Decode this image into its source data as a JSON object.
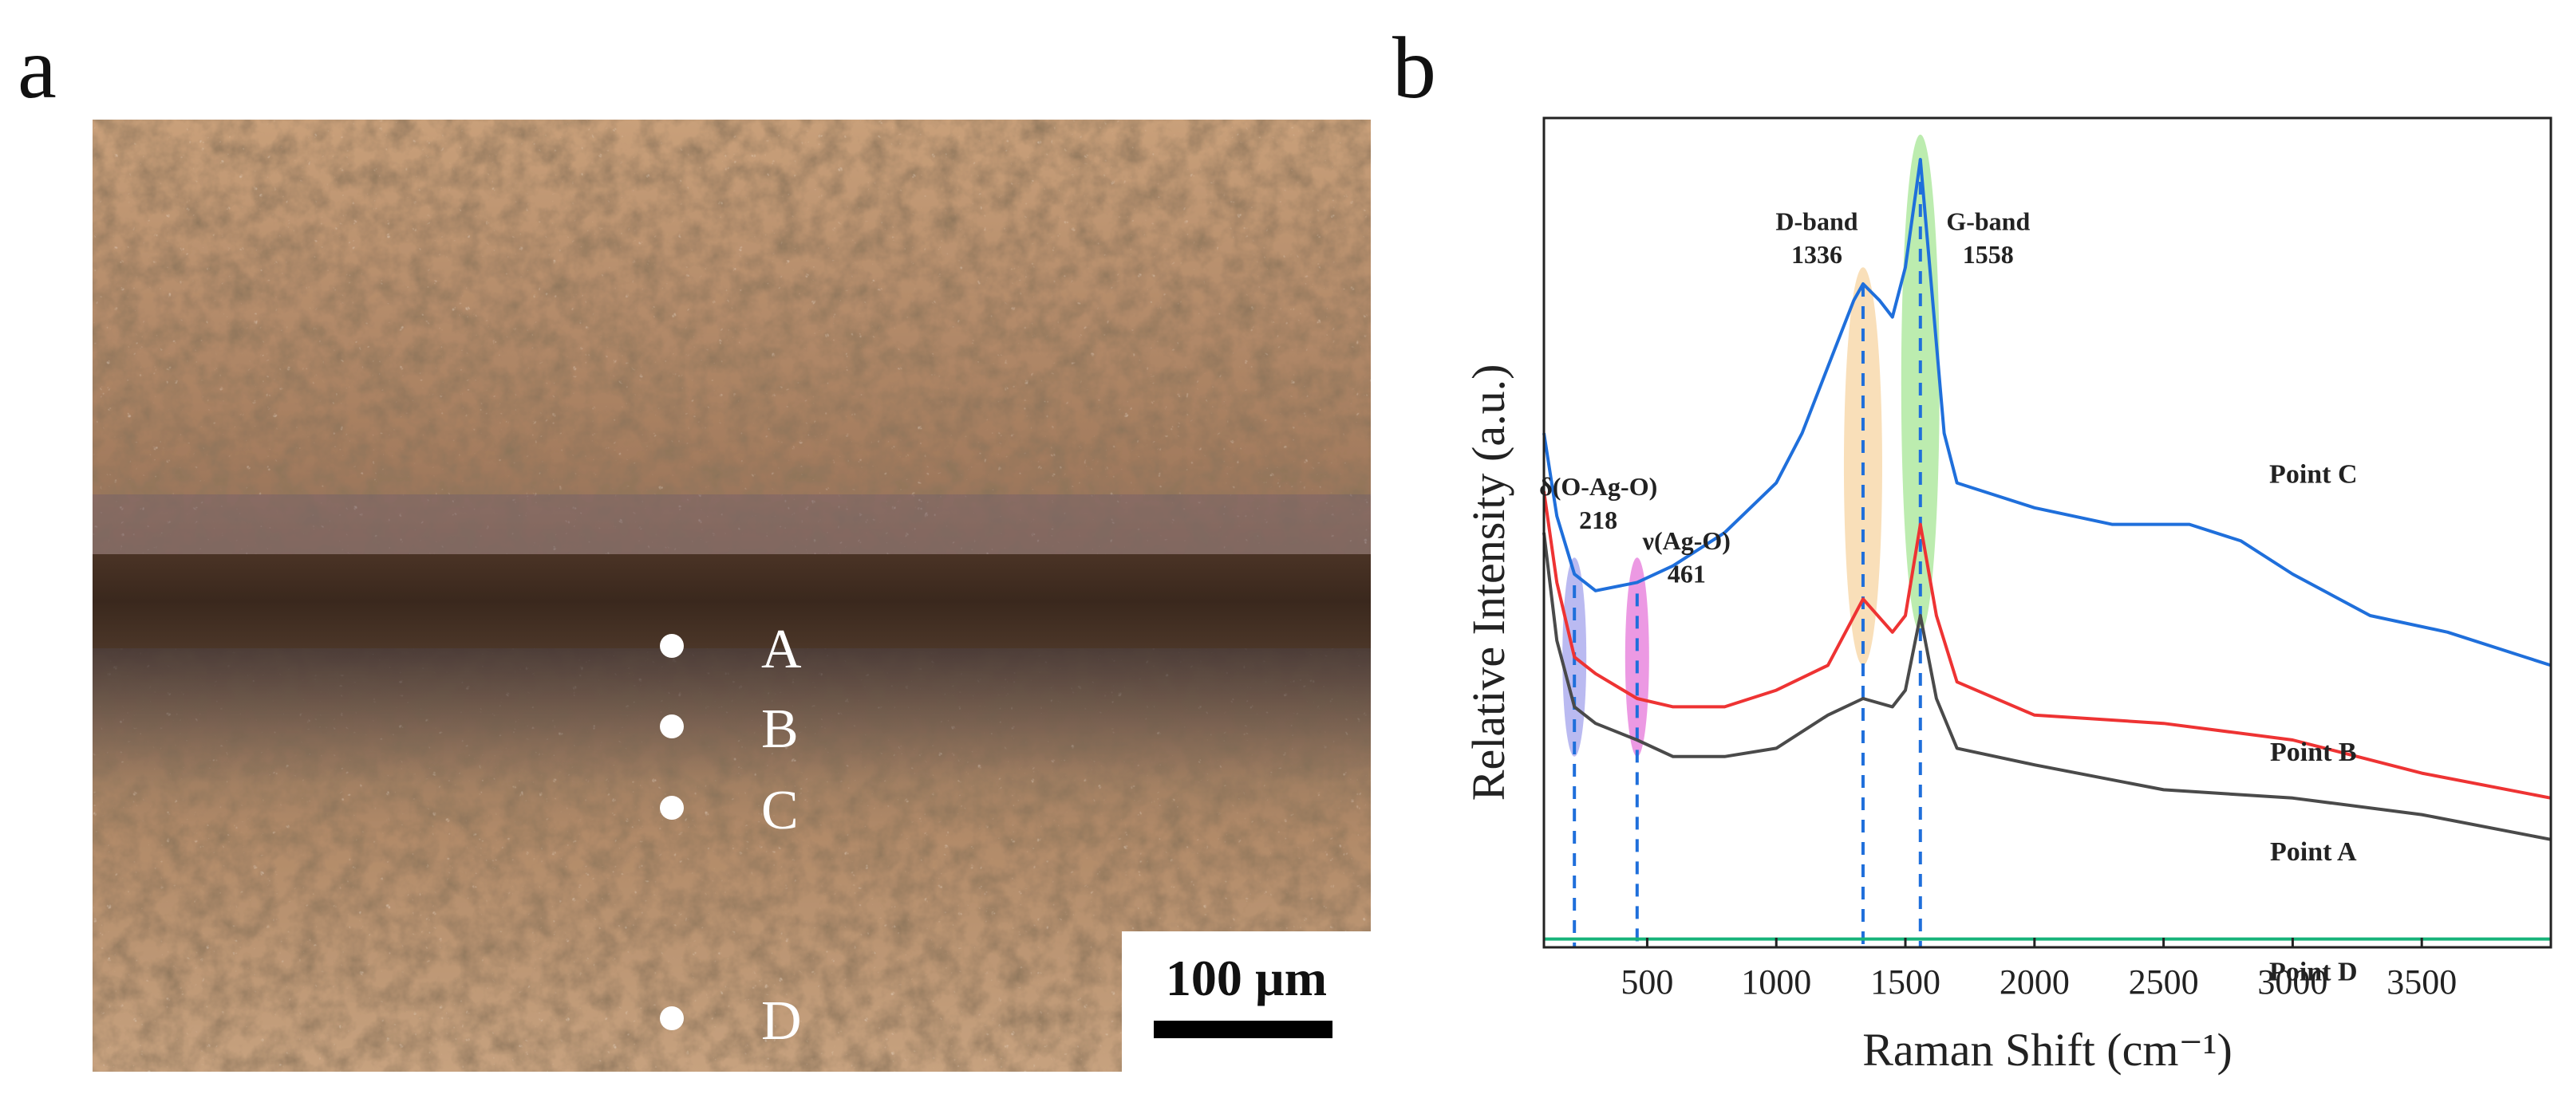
{
  "panel_a": {
    "letter": "a",
    "points": [
      {
        "label": "A"
      },
      {
        "label": "B"
      },
      {
        "label": "C"
      },
      {
        "label": "D"
      }
    ],
    "scale_bar_label": "100 µm"
  },
  "panel_b": {
    "letter": "b"
  },
  "colors": {
    "point_a": "#4a4a4a",
    "point_b": "#ee3333",
    "point_c": "#1f6fdb",
    "point_d": "#17b37a",
    "drop_line": "#1f6fdb",
    "band_218": "#8c8ce8",
    "band_461": "#e055d0",
    "band_d": "#f5c98a",
    "band_g": "#8fe07a"
  },
  "chart_data": {
    "type": "line",
    "xlabel": "Raman Shift (cm⁻¹)",
    "ylabel": "Relative Intensity (a.u.)",
    "xlim": [
      100,
      4000
    ],
    "ylim": [
      0,
      100
    ],
    "x_ticks": [
      500,
      1000,
      1500,
      2000,
      2500,
      3000,
      3500
    ],
    "y_ticks_shown": false,
    "series": [
      {
        "name": "Point C",
        "points": [
          [
            100,
            62
          ],
          [
            150,
            52
          ],
          [
            218,
            45
          ],
          [
            300,
            43
          ],
          [
            461,
            44
          ],
          [
            600,
            46
          ],
          [
            800,
            50
          ],
          [
            1000,
            56
          ],
          [
            1100,
            62
          ],
          [
            1200,
            70
          ],
          [
            1300,
            78
          ],
          [
            1336,
            80
          ],
          [
            1400,
            78
          ],
          [
            1450,
            76
          ],
          [
            1500,
            82
          ],
          [
            1558,
            95
          ],
          [
            1600,
            80
          ],
          [
            1650,
            62
          ],
          [
            1700,
            56
          ],
          [
            2000,
            53
          ],
          [
            2300,
            51
          ],
          [
            2600,
            51
          ],
          [
            2800,
            49
          ],
          [
            3000,
            45
          ],
          [
            3300,
            40
          ],
          [
            3600,
            38
          ],
          [
            3900,
            35
          ],
          [
            4000,
            34
          ]
        ]
      },
      {
        "name": "Point B",
        "points": [
          [
            100,
            55
          ],
          [
            150,
            44
          ],
          [
            218,
            35
          ],
          [
            300,
            33
          ],
          [
            461,
            30
          ],
          [
            600,
            29
          ],
          [
            800,
            29
          ],
          [
            1000,
            31
          ],
          [
            1200,
            34
          ],
          [
            1336,
            42
          ],
          [
            1450,
            38
          ],
          [
            1500,
            40
          ],
          [
            1558,
            51
          ],
          [
            1620,
            40
          ],
          [
            1700,
            32
          ],
          [
            2000,
            28
          ],
          [
            2500,
            27
          ],
          [
            3000,
            25
          ],
          [
            3500,
            21
          ],
          [
            4000,
            18
          ]
        ]
      },
      {
        "name": "Point A",
        "points": [
          [
            100,
            50
          ],
          [
            150,
            37
          ],
          [
            218,
            29
          ],
          [
            300,
            27
          ],
          [
            461,
            25
          ],
          [
            600,
            23
          ],
          [
            800,
            23
          ],
          [
            1000,
            24
          ],
          [
            1200,
            28
          ],
          [
            1336,
            30
          ],
          [
            1450,
            29
          ],
          [
            1500,
            31
          ],
          [
            1558,
            40
          ],
          [
            1620,
            30
          ],
          [
            1700,
            24
          ],
          [
            2000,
            22
          ],
          [
            2500,
            19
          ],
          [
            3000,
            18
          ],
          [
            3500,
            16
          ],
          [
            4000,
            13
          ]
        ]
      },
      {
        "name": "Point D",
        "points": [
          [
            100,
            1
          ],
          [
            4000,
            1
          ]
        ]
      }
    ],
    "annotations": [
      {
        "line1": "δ(O-Ag-O)",
        "line2": "218",
        "x": 218
      },
      {
        "line1": "ν(Ag-O)",
        "line2": "461",
        "x": 461
      },
      {
        "line1": "D-band",
        "line2": "1336",
        "x": 1336
      },
      {
        "line1": "G-band",
        "line2": "1558",
        "x": 1558
      }
    ]
  }
}
